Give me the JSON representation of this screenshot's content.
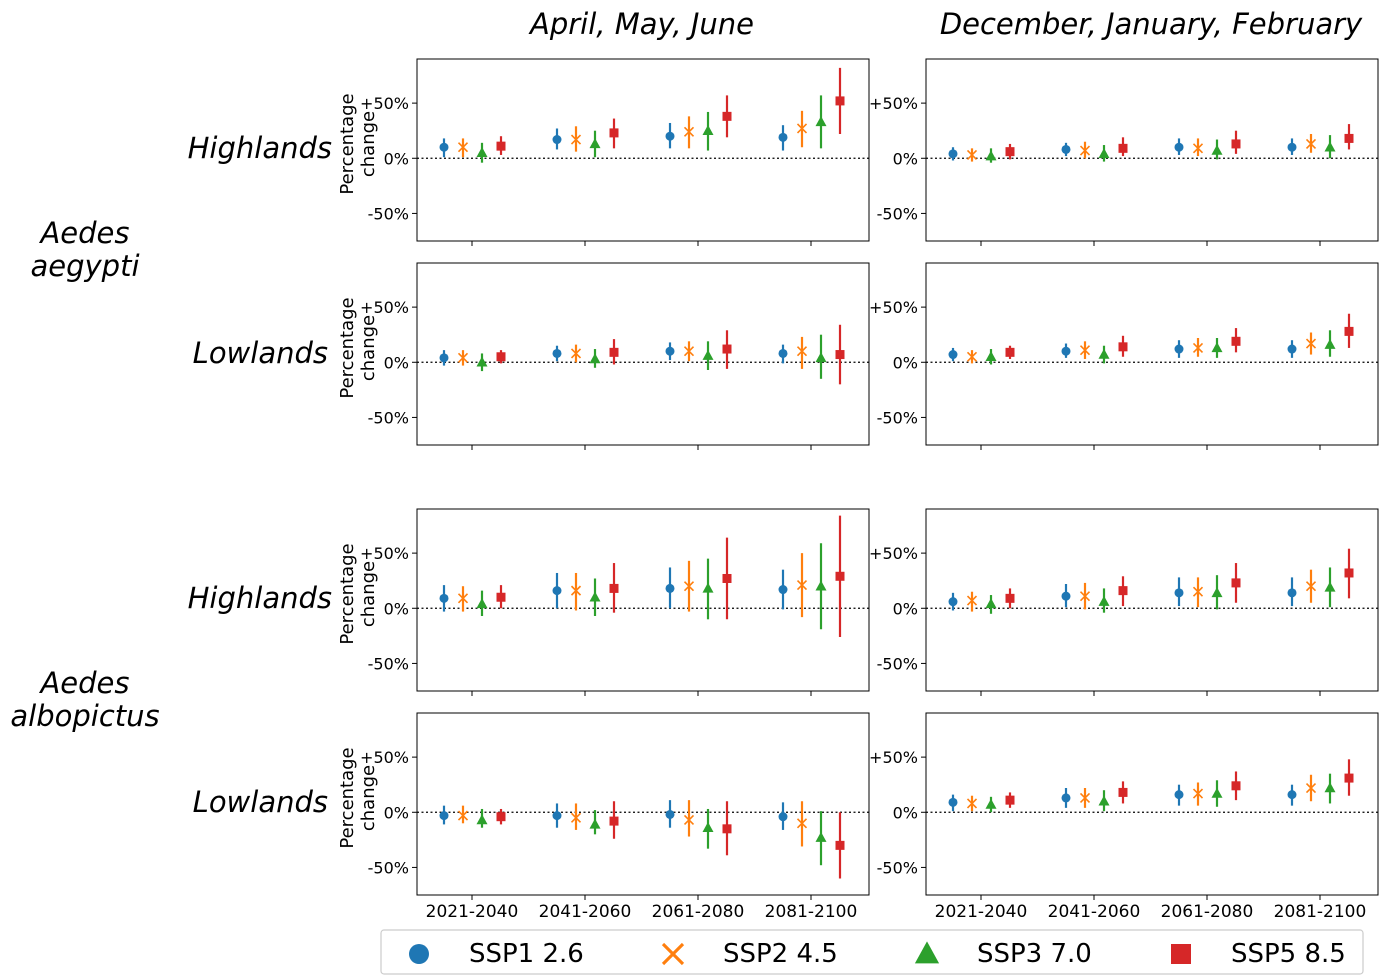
{
  "column_titles": [
    "April, May, June",
    "December, January, February"
  ],
  "species": [
    {
      "line1": "Aedes",
      "line2": "aegypti"
    },
    {
      "line1": "Aedes",
      "line2": "albopictus"
    }
  ],
  "region_labels": [
    "Highlands",
    "Lowlands",
    "Highlands",
    "Lowlands"
  ],
  "ylabel_line1": "Percentage",
  "ylabel_line2": "change",
  "yticks": [
    "+50%",
    "0%",
    "-50%"
  ],
  "periods": [
    "2021-2040",
    "2041-2060",
    "2061-2080",
    "2081-2100"
  ],
  "legend": [
    {
      "label": "SSP1 2.6",
      "marker": "circle",
      "color": "#1f77b4"
    },
    {
      "label": "SSP2 4.5",
      "marker": "x",
      "color": "#ff7f0e"
    },
    {
      "label": "SSP3 7.0",
      "marker": "triangle",
      "color": "#2ca02c"
    },
    {
      "label": "SSP5 8.5",
      "marker": "square",
      "color": "#d62728"
    }
  ],
  "chart_data": [
    {
      "type": "scatter",
      "species": "Aedes aegypti",
      "region": "Highlands",
      "season": "April, May, June",
      "ylim": [
        -75,
        90
      ],
      "grid": false,
      "categories": [
        "2021-2040",
        "2041-2060",
        "2061-2080",
        "2081-2100"
      ],
      "series": [
        {
          "name": "SSP1 2.6",
          "mid": [
            10,
            17,
            20,
            19
          ],
          "low": [
            1,
            8,
            9,
            7
          ],
          "high": [
            18,
            27,
            32,
            30
          ]
        },
        {
          "name": "SSP2 4.5",
          "mid": [
            10,
            17,
            24,
            27
          ],
          "low": [
            1,
            6,
            9,
            10
          ],
          "high": [
            18,
            29,
            38,
            43
          ]
        },
        {
          "name": "SSP3 7.0",
          "mid": [
            5,
            13,
            25,
            33
          ],
          "low": [
            -4,
            1,
            7,
            9
          ],
          "high": [
            14,
            25,
            42,
            57
          ]
        },
        {
          "name": "SSP5 8.5",
          "mid": [
            11,
            23,
            38,
            52
          ],
          "low": [
            3,
            9,
            19,
            22
          ],
          "high": [
            20,
            36,
            57,
            82
          ]
        }
      ]
    },
    {
      "type": "scatter",
      "species": "Aedes aegypti",
      "region": "Highlands",
      "season": "December, January, February",
      "ylim": [
        -75,
        90
      ],
      "grid": false,
      "categories": [
        "2021-2040",
        "2041-2060",
        "2061-2080",
        "2081-2100"
      ],
      "series": [
        {
          "name": "SSP1 2.6",
          "mid": [
            4,
            8,
            10,
            10
          ],
          "low": [
            -2,
            2,
            3,
            3
          ],
          "high": [
            10,
            14,
            18,
            18
          ]
        },
        {
          "name": "SSP2 4.5",
          "mid": [
            3,
            7,
            9,
            13
          ],
          "low": [
            -3,
            0,
            2,
            5
          ],
          "high": [
            9,
            15,
            18,
            22
          ]
        },
        {
          "name": "SSP3 7.0",
          "mid": [
            2,
            4,
            7,
            10
          ],
          "low": [
            -4,
            -3,
            -1,
            0
          ],
          "high": [
            9,
            12,
            17,
            21
          ]
        },
        {
          "name": "SSP5 8.5",
          "mid": [
            6,
            9,
            13,
            18
          ],
          "low": [
            -1,
            2,
            4,
            8
          ],
          "high": [
            13,
            19,
            25,
            31
          ]
        }
      ]
    },
    {
      "type": "scatter",
      "species": "Aedes aegypti",
      "region": "Lowlands",
      "season": "April, May, June",
      "ylim": [
        -75,
        90
      ],
      "grid": false,
      "categories": [
        "2021-2040",
        "2041-2060",
        "2061-2080",
        "2081-2100"
      ],
      "series": [
        {
          "name": "SSP1 2.6",
          "mid": [
            4,
            8,
            10,
            8
          ],
          "low": [
            -3,
            1,
            2,
            -1
          ],
          "high": [
            11,
            15,
            18,
            16
          ]
        },
        {
          "name": "SSP2 4.5",
          "mid": [
            4,
            8,
            10,
            10
          ],
          "low": [
            -3,
            0,
            1,
            -6
          ],
          "high": [
            11,
            16,
            19,
            23
          ]
        },
        {
          "name": "SSP3 7.0",
          "mid": [
            0,
            3,
            6,
            4
          ],
          "low": [
            -8,
            -5,
            -7,
            -15
          ],
          "high": [
            8,
            12,
            19,
            25
          ]
        },
        {
          "name": "SSP5 8.5",
          "mid": [
            5,
            9,
            12,
            7
          ],
          "low": [
            -1,
            -2,
            -6,
            -20
          ],
          "high": [
            11,
            21,
            29,
            34
          ]
        }
      ]
    },
    {
      "type": "scatter",
      "species": "Aedes aegypti",
      "region": "Lowlands",
      "season": "December, January, February",
      "ylim": [
        -75,
        90
      ],
      "grid": false,
      "categories": [
        "2021-2040",
        "2041-2060",
        "2061-2080",
        "2081-2100"
      ],
      "series": [
        {
          "name": "SSP1 2.6",
          "mid": [
            7,
            10,
            12,
            12
          ],
          "low": [
            1,
            4,
            4,
            4
          ],
          "high": [
            13,
            17,
            20,
            20
          ]
        },
        {
          "name": "SSP2 4.5",
          "mid": [
            5,
            11,
            13,
            17
          ],
          "low": [
            -1,
            3,
            5,
            7
          ],
          "high": [
            11,
            19,
            22,
            27
          ]
        },
        {
          "name": "SSP3 7.0",
          "mid": [
            5,
            7,
            13,
            16
          ],
          "low": [
            -2,
            -1,
            4,
            5
          ],
          "high": [
            12,
            15,
            22,
            29
          ]
        },
        {
          "name": "SSP5 8.5",
          "mid": [
            9,
            14,
            19,
            28
          ],
          "low": [
            3,
            5,
            9,
            13
          ],
          "high": [
            15,
            24,
            31,
            44
          ]
        }
      ]
    },
    {
      "type": "scatter",
      "species": "Aedes albopictus",
      "region": "Highlands",
      "season": "April, May, June",
      "ylim": [
        -75,
        90
      ],
      "grid": false,
      "categories": [
        "2021-2040",
        "2041-2060",
        "2061-2080",
        "2081-2100"
      ],
      "series": [
        {
          "name": "SSP1 2.6",
          "mid": [
            9,
            16,
            18,
            17
          ],
          "low": [
            -3,
            0,
            0,
            -1
          ],
          "high": [
            21,
            32,
            37,
            35
          ]
        },
        {
          "name": "SSP2 4.5",
          "mid": [
            9,
            16,
            20,
            21
          ],
          "low": [
            -3,
            -2,
            -3,
            -8
          ],
          "high": [
            20,
            32,
            43,
            50
          ]
        },
        {
          "name": "SSP3 7.0",
          "mid": [
            4,
            10,
            18,
            20
          ],
          "low": [
            -7,
            -7,
            -10,
            -19
          ],
          "high": [
            16,
            27,
            45,
            59
          ]
        },
        {
          "name": "SSP5 8.5",
          "mid": [
            10,
            18,
            27,
            29
          ],
          "low": [
            0,
            -4,
            -10,
            -26
          ],
          "high": [
            21,
            41,
            64,
            84
          ]
        }
      ]
    },
    {
      "type": "scatter",
      "species": "Aedes albopictus",
      "region": "Highlands",
      "season": "December, January, February",
      "ylim": [
        -75,
        90
      ],
      "grid": false,
      "categories": [
        "2021-2040",
        "2041-2060",
        "2061-2080",
        "2081-2100"
      ],
      "series": [
        {
          "name": "SSP1 2.6",
          "mid": [
            6,
            11,
            14,
            14
          ],
          "low": [
            -2,
            1,
            2,
            2
          ],
          "high": [
            14,
            22,
            28,
            28
          ]
        },
        {
          "name": "SSP2 4.5",
          "mid": [
            7,
            11,
            15,
            20
          ],
          "low": [
            -3,
            -1,
            1,
            5
          ],
          "high": [
            15,
            23,
            28,
            35
          ]
        },
        {
          "name": "SSP3 7.0",
          "mid": [
            4,
            6,
            14,
            19
          ],
          "low": [
            -5,
            -4,
            -1,
            1
          ],
          "high": [
            12,
            18,
            30,
            37
          ]
        },
        {
          "name": "SSP5 8.5",
          "mid": [
            9,
            16,
            23,
            32
          ],
          "low": [
            0,
            2,
            5,
            9
          ],
          "high": [
            18,
            29,
            41,
            54
          ]
        }
      ]
    },
    {
      "type": "scatter",
      "species": "Aedes albopictus",
      "region": "Lowlands",
      "season": "April, May, June",
      "ylim": [
        -75,
        90
      ],
      "grid": false,
      "categories": [
        "2021-2040",
        "2041-2060",
        "2061-2080",
        "2081-2100"
      ],
      "series": [
        {
          "name": "SSP1 2.6",
          "mid": [
            -3,
            -3,
            -2,
            -4
          ],
          "low": [
            -11,
            -14,
            -14,
            -16
          ],
          "high": [
            6,
            8,
            11,
            9
          ]
        },
        {
          "name": "SSP2 4.5",
          "mid": [
            -3,
            -5,
            -7,
            -10
          ],
          "low": [
            -10,
            -16,
            -22,
            -31
          ],
          "high": [
            6,
            8,
            11,
            10
          ]
        },
        {
          "name": "SSP3 7.0",
          "mid": [
            -7,
            -11,
            -14,
            -23
          ],
          "low": [
            -14,
            -20,
            -33,
            -48
          ],
          "high": [
            3,
            2,
            3,
            1
          ]
        },
        {
          "name": "SSP5 8.5",
          "mid": [
            -4,
            -8,
            -15,
            -30
          ],
          "low": [
            -11,
            -24,
            -39,
            -60
          ],
          "high": [
            3,
            10,
            10,
            0
          ]
        }
      ]
    },
    {
      "type": "scatter",
      "species": "Aedes albopictus",
      "region": "Lowlands",
      "season": "December, January, February",
      "ylim": [
        -75,
        90
      ],
      "grid": false,
      "categories": [
        "2021-2040",
        "2041-2060",
        "2061-2080",
        "2081-2100"
      ],
      "series": [
        {
          "name": "SSP1 2.6",
          "mid": [
            9,
            13,
            16,
            16
          ],
          "low": [
            1,
            4,
            6,
            6
          ],
          "high": [
            16,
            22,
            25,
            25
          ]
        },
        {
          "name": "SSP2 4.5",
          "mid": [
            8,
            13,
            17,
            22
          ],
          "low": [
            1,
            4,
            6,
            10
          ],
          "high": [
            15,
            22,
            27,
            34
          ]
        },
        {
          "name": "SSP3 7.0",
          "mid": [
            7,
            10,
            17,
            22
          ],
          "low": [
            0,
            1,
            5,
            8
          ],
          "high": [
            14,
            20,
            29,
            35
          ]
        },
        {
          "name": "SSP5 8.5",
          "mid": [
            11,
            18,
            24,
            31
          ],
          "low": [
            4,
            8,
            11,
            15
          ],
          "high": [
            18,
            28,
            37,
            48
          ]
        }
      ]
    }
  ]
}
